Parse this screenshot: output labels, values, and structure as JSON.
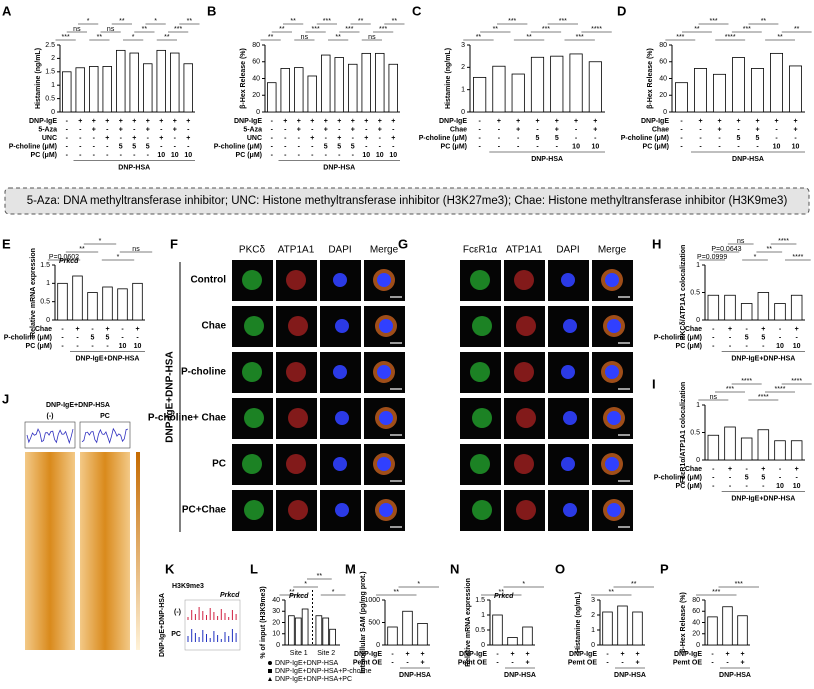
{
  "banner": "5-Aza: DNA methyltransferase inhibitor; UNC: Histone methyltransferase inhibitor (H3K27me3); Chae: Histone methyltransferase inhibitor (H3K9me3)",
  "bar_panels": [
    {
      "letter": "A",
      "ylabel": "Histamine (ng/mL)",
      "ylim": [
        0,
        2.5
      ],
      "yticks": [
        0,
        0.5,
        1,
        1.5,
        2,
        2.5
      ],
      "values": [
        1.5,
        1.65,
        1.7,
        1.7,
        2.3,
        2.2,
        1.8,
        2.3,
        2.2,
        1.8
      ],
      "rows": [
        {
          "label": "DNP-IgE",
          "cells": [
            "-",
            "+",
            "+",
            "+",
            "+",
            "+",
            "+",
            "+",
            "+",
            "+"
          ]
        },
        {
          "label": "5-Aza",
          "cells": [
            "-",
            "-",
            "+",
            "-",
            "+",
            "-",
            "+",
            "-",
            "+",
            "-"
          ]
        },
        {
          "label": "UNC",
          "cells": [
            "-",
            "-",
            "-",
            "+",
            "-",
            "+",
            "-",
            "+",
            "-",
            "+"
          ]
        },
        {
          "label": "P-choline (μM)",
          "cells": [
            "-",
            "-",
            "-",
            "-",
            "5",
            "5",
            "5",
            "-",
            "-",
            "-"
          ]
        },
        {
          "label": "PC (μM)",
          "cells": [
            "-",
            "-",
            "-",
            "-",
            "-",
            "-",
            "-",
            "10",
            "10",
            "10"
          ]
        }
      ],
      "group": "DNP-HSA",
      "annotations": [
        "***",
        "ns",
        "*",
        "**",
        "ns",
        "**",
        "*",
        "**",
        "*",
        "**",
        "***",
        "**"
      ]
    },
    {
      "letter": "B",
      "ylabel": "β-Hex Release (%)",
      "ylim": [
        0,
        80
      ],
      "yticks": [
        0,
        20,
        40,
        60,
        80
      ],
      "values": [
        35,
        52,
        53,
        43,
        68,
        65,
        57,
        70,
        70,
        57
      ],
      "rows": [
        {
          "label": "DNP-IgE",
          "cells": [
            "-",
            "+",
            "+",
            "+",
            "+",
            "+",
            "+",
            "+",
            "+",
            "+"
          ]
        },
        {
          "label": "5-Aza",
          "cells": [
            "-",
            "-",
            "+",
            "-",
            "+",
            "-",
            "+",
            "-",
            "+",
            "-"
          ]
        },
        {
          "label": "UNC",
          "cells": [
            "-",
            "-",
            "-",
            "+",
            "-",
            "+",
            "-",
            "+",
            "-",
            "+"
          ]
        },
        {
          "label": "P-choline (μM)",
          "cells": [
            "-",
            "-",
            "-",
            "-",
            "5",
            "5",
            "5",
            "-",
            "-",
            "-"
          ]
        },
        {
          "label": "PC (μM)",
          "cells": [
            "-",
            "-",
            "-",
            "-",
            "-",
            "-",
            "-",
            "10",
            "10",
            "10"
          ]
        }
      ],
      "group": "DNP-HSA",
      "annotations": [
        "**",
        "**",
        "**",
        "ns",
        "***",
        "***",
        "**",
        "***",
        "**",
        "ns",
        "***",
        "**"
      ]
    },
    {
      "letter": "C",
      "ylabel": "Histamine (ng/mL)",
      "ylim": [
        0,
        3
      ],
      "yticks": [
        0,
        1,
        2,
        3
      ],
      "values": [
        1.55,
        2.05,
        1.7,
        2.45,
        2.5,
        2.6,
        2.25
      ],
      "rows": [
        {
          "label": "DNP-IgE",
          "cells": [
            "-",
            "+",
            "+",
            "+",
            "+",
            "+",
            "+"
          ]
        },
        {
          "label": "Chae",
          "cells": [
            "-",
            "-",
            "+",
            "-",
            "+",
            "-",
            "+"
          ]
        },
        {
          "label": "P-choline (μM)",
          "cells": [
            "-",
            "-",
            "-",
            "5",
            "5",
            "-",
            "-"
          ]
        },
        {
          "label": "PC (μM)",
          "cells": [
            "-",
            "-",
            "-",
            "-",
            "-",
            "10",
            "10"
          ]
        }
      ],
      "group": "DNP-HSA",
      "annotations": [
        "**",
        "**",
        "***",
        "**",
        "***",
        "***",
        "***",
        "****"
      ]
    },
    {
      "letter": "D",
      "ylabel": "β-Hex Release (%)",
      "ylim": [
        0,
        80
      ],
      "yticks": [
        0,
        20,
        40,
        60,
        80
      ],
      "values": [
        35,
        52,
        45,
        65,
        52,
        70,
        55
      ],
      "rows": [
        {
          "label": "DNP-IgE",
          "cells": [
            "-",
            "+",
            "+",
            "+",
            "+",
            "+",
            "+"
          ]
        },
        {
          "label": "Chae",
          "cells": [
            "-",
            "-",
            "+",
            "-",
            "+",
            "-",
            "+"
          ]
        },
        {
          "label": "P-choline (μM)",
          "cells": [
            "-",
            "-",
            "-",
            "5",
            "5",
            "-",
            "-"
          ]
        },
        {
          "label": "PC (μM)",
          "cells": [
            "-",
            "-",
            "-",
            "-",
            "-",
            "10",
            "10"
          ]
        }
      ],
      "group": "DNP-HSA",
      "annotations": [
        "***",
        "**",
        "***",
        "****",
        "***",
        "**",
        "**",
        "**"
      ]
    },
    {
      "letter": "E",
      "title": "Prkcd",
      "ylabel": "Relative mRNA expression",
      "ylim": [
        0,
        1.5
      ],
      "yticks": [
        0,
        0.5,
        1,
        1.5
      ],
      "values": [
        1.0,
        1.2,
        0.75,
        0.9,
        0.85,
        1.0
      ],
      "rows": [
        {
          "label": "Chae",
          "cells": [
            "-",
            "+",
            "-",
            "+",
            "-",
            "+"
          ]
        },
        {
          "label": "P-choline (μM)",
          "cells": [
            "-",
            "-",
            "5",
            "5",
            "-",
            "-"
          ]
        },
        {
          "label": "PC (μM)",
          "cells": [
            "-",
            "-",
            "-",
            "-",
            "10",
            "10"
          ]
        }
      ],
      "group": "DNP-IgE+DNP-HSA",
      "annotations": [
        "P=0.0602",
        "**",
        "*",
        "*",
        "ns"
      ]
    },
    {
      "letter": "H",
      "ylabel": "PKCδ/ATP1A1 colocalization",
      "ylim": [
        0,
        1
      ],
      "yticks": [
        0,
        0.5,
        1
      ],
      "values": [
        0.45,
        0.45,
        0.3,
        0.5,
        0.3,
        0.45
      ],
      "rows": [
        {
          "label": "Chae",
          "cells": [
            "-",
            "+",
            "-",
            "+",
            "-",
            "+"
          ]
        },
        {
          "label": "P-choline (μM)",
          "cells": [
            "-",
            "-",
            "5",
            "5",
            "-",
            "-"
          ]
        },
        {
          "label": "PC (μM)",
          "cells": [
            "-",
            "-",
            "-",
            "-",
            "10",
            "10"
          ]
        }
      ],
      "group": "DNP-IgE+DNP-HSA",
      "annotations": [
        "P=0.0999",
        "P=0.0643",
        "ns",
        "*",
        "**",
        "****",
        "****"
      ]
    },
    {
      "letter": "I",
      "ylabel": "FcεR1α/ATP1A1 colocalization",
      "ylim": [
        0,
        1
      ],
      "yticks": [
        0,
        0.5,
        1
      ],
      "values": [
        0.45,
        0.6,
        0.4,
        0.55,
        0.35,
        0.35
      ],
      "rows": [
        {
          "label": "Chae",
          "cells": [
            "-",
            "+",
            "-",
            "+",
            "-",
            "+"
          ]
        },
        {
          "label": "P-choline (μM)",
          "cells": [
            "-",
            "-",
            "5",
            "5",
            "-",
            "-"
          ]
        },
        {
          "label": "PC (μM)",
          "cells": [
            "-",
            "-",
            "-",
            "-",
            "10",
            "10"
          ]
        }
      ],
      "group": "DNP-IgE+DNP-HSA",
      "annotations": [
        "ns",
        "***",
        "****",
        "****",
        "****",
        "****"
      ]
    },
    {
      "letter": "M",
      "ylabel": "Intracellular SAM (pg/mg prot.)",
      "ylim": [
        0,
        1000
      ],
      "yticks": [
        0,
        500,
        1000
      ],
      "values": [
        400,
        750,
        480
      ],
      "rows": [
        {
          "label": "DNP-IgE",
          "cells": [
            "-",
            "+",
            "+"
          ]
        },
        {
          "label": "Pemt OE",
          "cells": [
            "-",
            "-",
            "+"
          ]
        }
      ],
      "group": "DNP-HSA",
      "annotations": [
        "**",
        "*"
      ]
    },
    {
      "letter": "N",
      "title": "Prkcd",
      "ylabel": "Relative mRNA expression",
      "ylim": [
        0,
        1.5
      ],
      "yticks": [
        0,
        0.5,
        1,
        1.5
      ],
      "values": [
        1.0,
        0.25,
        0.6
      ],
      "rows": [
        {
          "label": "DNP-IgE",
          "cells": [
            "-",
            "+",
            "+"
          ]
        },
        {
          "label": "Pemt OE",
          "cells": [
            "-",
            "-",
            "+"
          ]
        }
      ],
      "group": "DNP-HSA",
      "annotations": [
        "**",
        "*"
      ]
    },
    {
      "letter": "O",
      "ylabel": "Histamine (ng/mL)",
      "ylim": [
        0,
        3
      ],
      "yticks": [
        0,
        1,
        2,
        3
      ],
      "values": [
        2.2,
        2.6,
        2.2
      ],
      "rows": [
        {
          "label": "DNP-IgE",
          "cells": [
            "-",
            "+",
            "+"
          ]
        },
        {
          "label": "Pemt OE",
          "cells": [
            "-",
            "-",
            "+"
          ]
        }
      ],
      "group": "DNP-HSA",
      "annotations": [
        "**",
        "**"
      ]
    },
    {
      "letter": "P",
      "ylabel": "β-Hex Release (%)",
      "ylim": [
        0,
        80
      ],
      "yticks": [
        0,
        20,
        40,
        60,
        80
      ],
      "values": [
        50,
        68,
        52
      ],
      "rows": [
        {
          "label": "DNP-IgE",
          "cells": [
            "-",
            "+",
            "+"
          ]
        },
        {
          "label": "Pemt OE",
          "cells": [
            "-",
            "-",
            "+"
          ]
        }
      ],
      "group": "DNP-HSA",
      "annotations": [
        "***",
        "***"
      ]
    }
  ],
  "panel_L": {
    "letter": "L",
    "title": "Prkcd",
    "ylabel": "% of input (H3K9me3)",
    "ylim": [
      0,
      40
    ],
    "yticks": [
      0,
      10,
      20,
      30,
      40
    ],
    "categories": [
      "Site 1",
      "Site 2"
    ],
    "series": [
      {
        "name": "DNP-IgE+DNP-HSA",
        "values": [
          26,
          26
        ]
      },
      {
        "name": "DNP-IgE+DNP-HSA+P-choline",
        "values": [
          24,
          24
        ]
      },
      {
        "name": "DNP-IgE+DNP-HSA+PC",
        "values": [
          32,
          14
        ]
      }
    ],
    "annotations": [
      "**",
      "*",
      "**",
      "*"
    ]
  },
  "panel_F": {
    "letter": "F",
    "columns": [
      "PKCδ",
      "ATP1A1",
      "DAPI",
      "Merge"
    ],
    "rows": [
      "Control",
      "Chae",
      "P-choline",
      "P-choline+ Chae",
      "PC",
      "PC+Chae"
    ],
    "side_label": "DNP-IgE+DNP-HSA"
  },
  "panel_G": {
    "letter": "G",
    "columns": [
      "FcεR1α",
      "ATP1A1",
      "DAPI",
      "Merge"
    ]
  },
  "panel_J": {
    "letter": "J",
    "header": "DNP-IgE+DNP-HSA",
    "groups": [
      "(-)",
      "PC"
    ]
  },
  "panel_K": {
    "letter": "K",
    "mark": "H3K9me3",
    "gene": "Prkcd",
    "side_label": "DNP-IgE+DNP-HSA",
    "tracks": [
      "(-)",
      "PC"
    ]
  }
}
